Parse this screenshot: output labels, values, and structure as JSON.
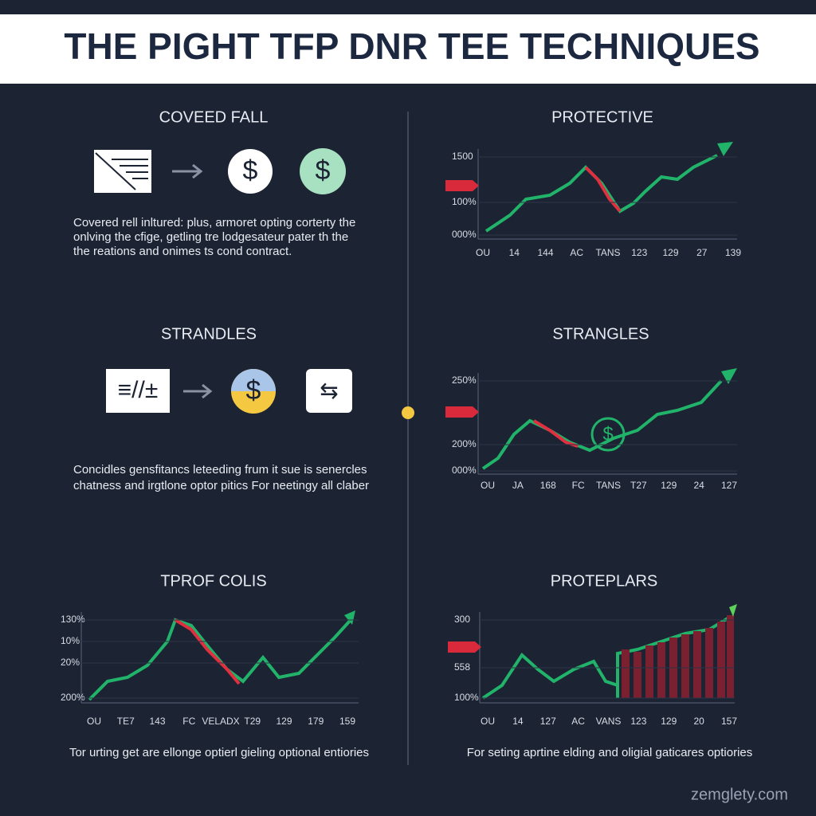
{
  "title": "THE PIGHT TFP DNR TEE TECHNIQUES",
  "panels": [
    {
      "heading": "COVEED FALL",
      "text": [
        "Covered rell inltured: plus, armoret opting corterty the",
        "onlving the cfige, getling tre lodgesateur pater th the",
        "the reations and onimes ts cond contract."
      ]
    },
    {
      "heading": "PROTECTIVE",
      "y_labels": [
        "1500",
        "100%",
        "000%"
      ],
      "x_labels": [
        "OU",
        "14",
        "144",
        "AC",
        "TANS",
        "123",
        "129",
        "27",
        "139"
      ]
    },
    {
      "heading": "STRANDLES",
      "text": [
        "Concidles gensfitancs leteeding frum it sue is senercles",
        "chatness and irgtlone optor pitics For neetingy all claber"
      ]
    },
    {
      "heading": "STRANGLES",
      "y_labels": [
        "250%",
        "200%",
        "000%"
      ],
      "x_labels": [
        "OU",
        "JA",
        "168",
        "FC",
        "TANS",
        "T27",
        "129",
        "24",
        "127"
      ]
    },
    {
      "heading": "TPROF COLIS",
      "y_labels": [
        "130%",
        "10%",
        "20%",
        "200%"
      ],
      "x_labels": [
        "OU",
        "TE7",
        "143",
        "FC",
        "VELADX",
        "T29",
        "129",
        "179",
        "159"
      ],
      "caption": "Tor urting get are ellonge optierl gieling optional entiories"
    },
    {
      "heading": "PROTEPLARS",
      "y_labels": [
        "300",
        "558",
        "100%"
      ],
      "x_labels": [
        "OU",
        "14",
        "127",
        "AC",
        "VANS",
        "123",
        "129",
        "20",
        "157"
      ],
      "caption": "For seting aprtine elding and oligial gaticares optiories"
    }
  ],
  "footer": "zemglety.com"
}
